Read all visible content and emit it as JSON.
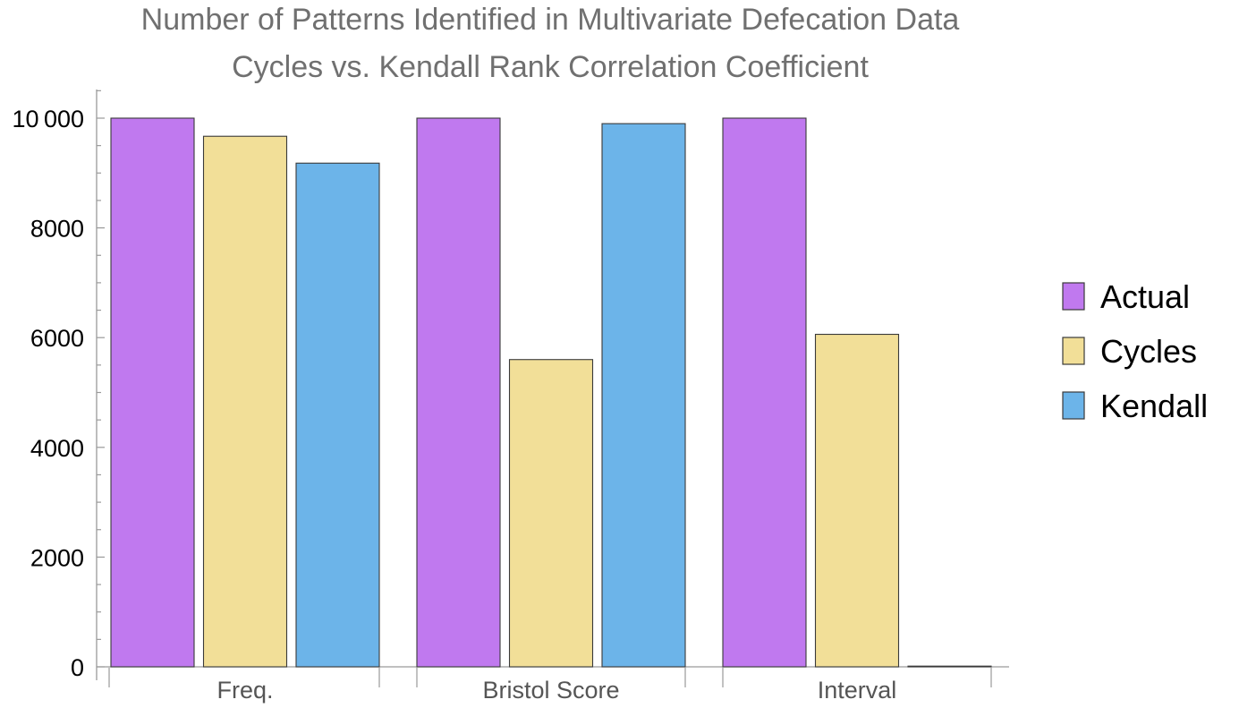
{
  "chart_data": {
    "type": "bar",
    "title": "Number of Patterns Identified in Multivariate Defecation Data",
    "subtitle": "Cycles vs. Kendall Rank Correlation Coefficient",
    "categories": [
      "Freq.",
      "Bristol Score",
      "Interval"
    ],
    "series": [
      {
        "name": "Actual",
        "values": [
          10000,
          10000,
          10000
        ]
      },
      {
        "name": "Cycles",
        "values": [
          9670,
          5600,
          6060
        ]
      },
      {
        "name": "Kendall",
        "values": [
          9180,
          9900,
          0
        ]
      }
    ],
    "xlabel": "",
    "ylabel": "",
    "ylim": [
      0,
      10500
    ],
    "yticks": [
      0,
      2000,
      4000,
      6000,
      8000,
      10000
    ],
    "ytick_labels": [
      "0",
      "2000",
      "4000",
      "6000",
      "8000",
      "10 000"
    ],
    "grid": false,
    "legend_position": "right",
    "colors": {
      "Actual": "#c079ef",
      "Cycles": "#f2df98",
      "Kendall": "#6cb4e9"
    },
    "bar_stroke": "#3a3a3a"
  }
}
